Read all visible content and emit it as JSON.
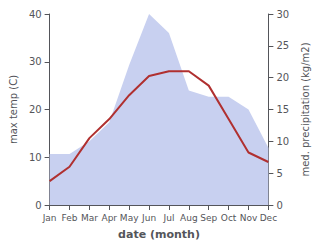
{
  "chart_data": {
    "type": "line",
    "xlabel": "date (month)",
    "ylabel": "max temp (C)",
    "y2label": "med. precipitation (kg/m2)",
    "categories": [
      "Jan",
      "Feb",
      "Mar",
      "Apr",
      "May",
      "Jun",
      "Jul",
      "Aug",
      "Sep",
      "Oct",
      "Nov",
      "Dec"
    ],
    "series": [
      {
        "type": "area",
        "axis": "y2",
        "color": "#c8d0f0",
        "values": [
          8,
          8,
          10,
          13,
          22,
          30,
          27,
          18,
          17,
          17,
          15,
          9
        ]
      },
      {
        "type": "line",
        "color": "#b03030",
        "values": [
          5,
          8,
          14,
          18,
          23,
          27,
          28,
          28,
          25,
          18,
          11,
          9
        ]
      }
    ],
    "ylim": [
      0,
      40
    ],
    "yticks": [
      0,
      10,
      20,
      30,
      40
    ],
    "y2lim": [
      0,
      30
    ],
    "y2ticks": [
      0,
      5,
      10,
      15,
      20,
      25,
      30
    ],
    "grid": false
  }
}
